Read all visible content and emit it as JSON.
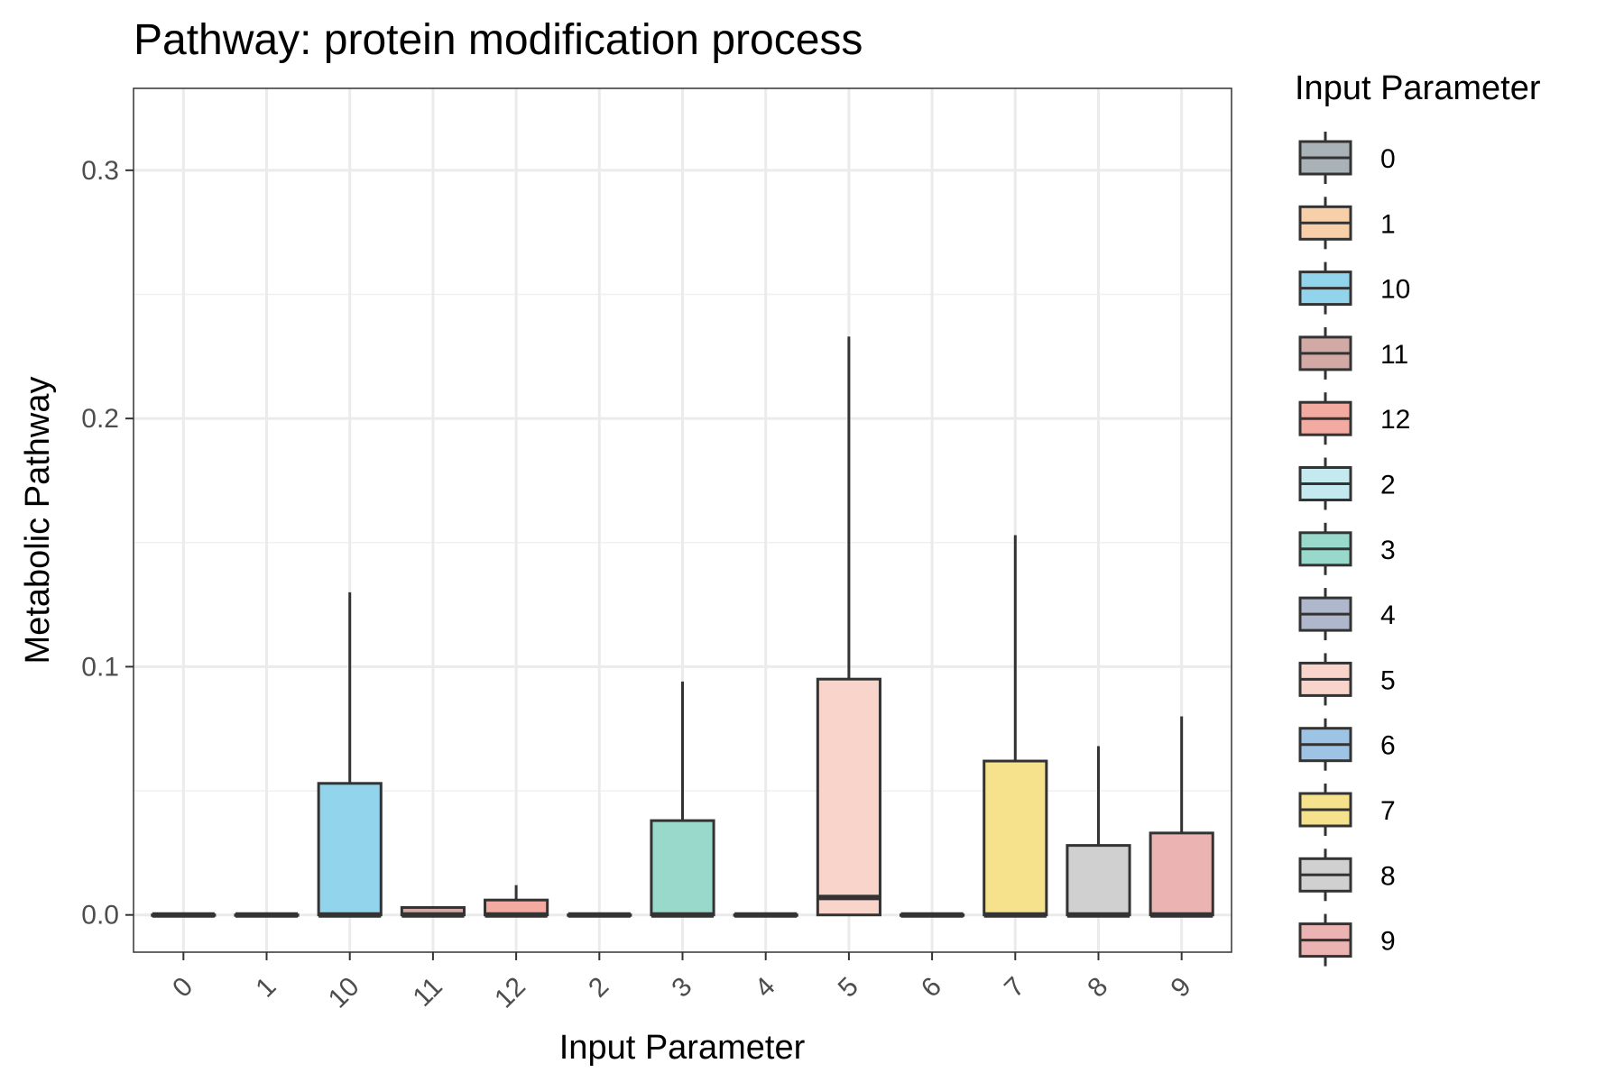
{
  "chart_data": {
    "type": "boxplot",
    "title": "Pathway: protein modification process",
    "xlabel": "Input Parameter",
    "ylabel": "Metabolic Pathway",
    "ylim": [
      -0.015,
      0.333
    ],
    "y_ticks": [
      0.0,
      0.1,
      0.2,
      0.3
    ],
    "y_tick_labels": [
      "0.0",
      "0.1",
      "0.2",
      "0.3"
    ],
    "grid": true,
    "legend": {
      "title": "Input Parameter",
      "placement": "right"
    },
    "categories": [
      "0",
      "1",
      "10",
      "11",
      "12",
      "2",
      "3",
      "4",
      "5",
      "6",
      "7",
      "8",
      "9"
    ],
    "colors": [
      "#A9B2B6",
      "#F7CFA8",
      "#93D4ED",
      "#D3A9A6",
      "#F3AAA1",
      "#C4E9EF",
      "#98D9CC",
      "#AFB7CC",
      "#F8D4CA",
      "#9DC3E5",
      "#F6E18D",
      "#D0D0D0",
      "#EBB4B2"
    ],
    "boxes": [
      {
        "category": "0",
        "min": 0.0,
        "q1": 0.0,
        "median": 0.0,
        "q3": 0.0,
        "max": 0.0
      },
      {
        "category": "1",
        "min": 0.0,
        "q1": 0.0,
        "median": 0.0,
        "q3": 0.0,
        "max": 0.0
      },
      {
        "category": "10",
        "min": 0.0,
        "q1": 0.0,
        "median": 0.0,
        "q3": 0.053,
        "max": 0.13
      },
      {
        "category": "11",
        "min": 0.0,
        "q1": 0.0,
        "median": 0.0,
        "q3": 0.003,
        "max": 0.003
      },
      {
        "category": "12",
        "min": 0.0,
        "q1": 0.0,
        "median": 0.0,
        "q3": 0.006,
        "max": 0.012
      },
      {
        "category": "2",
        "min": 0.0,
        "q1": 0.0,
        "median": 0.0,
        "q3": 0.0,
        "max": 0.0
      },
      {
        "category": "3",
        "min": 0.0,
        "q1": 0.0,
        "median": 0.0,
        "q3": 0.038,
        "max": 0.094
      },
      {
        "category": "4",
        "min": 0.0,
        "q1": 0.0,
        "median": 0.0,
        "q3": 0.0,
        "max": 0.0
      },
      {
        "category": "5",
        "min": 0.0,
        "q1": 0.0,
        "median": 0.007,
        "q3": 0.095,
        "max": 0.233
      },
      {
        "category": "6",
        "min": 0.0,
        "q1": 0.0,
        "median": 0.0,
        "q3": 0.0,
        "max": 0.0
      },
      {
        "category": "7",
        "min": 0.0,
        "q1": 0.0,
        "median": 0.0,
        "q3": 0.062,
        "max": 0.153
      },
      {
        "category": "8",
        "min": 0.0,
        "q1": 0.0,
        "median": 0.0,
        "q3": 0.028,
        "max": 0.068
      },
      {
        "category": "9",
        "min": 0.0,
        "q1": 0.0,
        "median": 0.0,
        "q3": 0.033,
        "max": 0.08
      }
    ]
  }
}
